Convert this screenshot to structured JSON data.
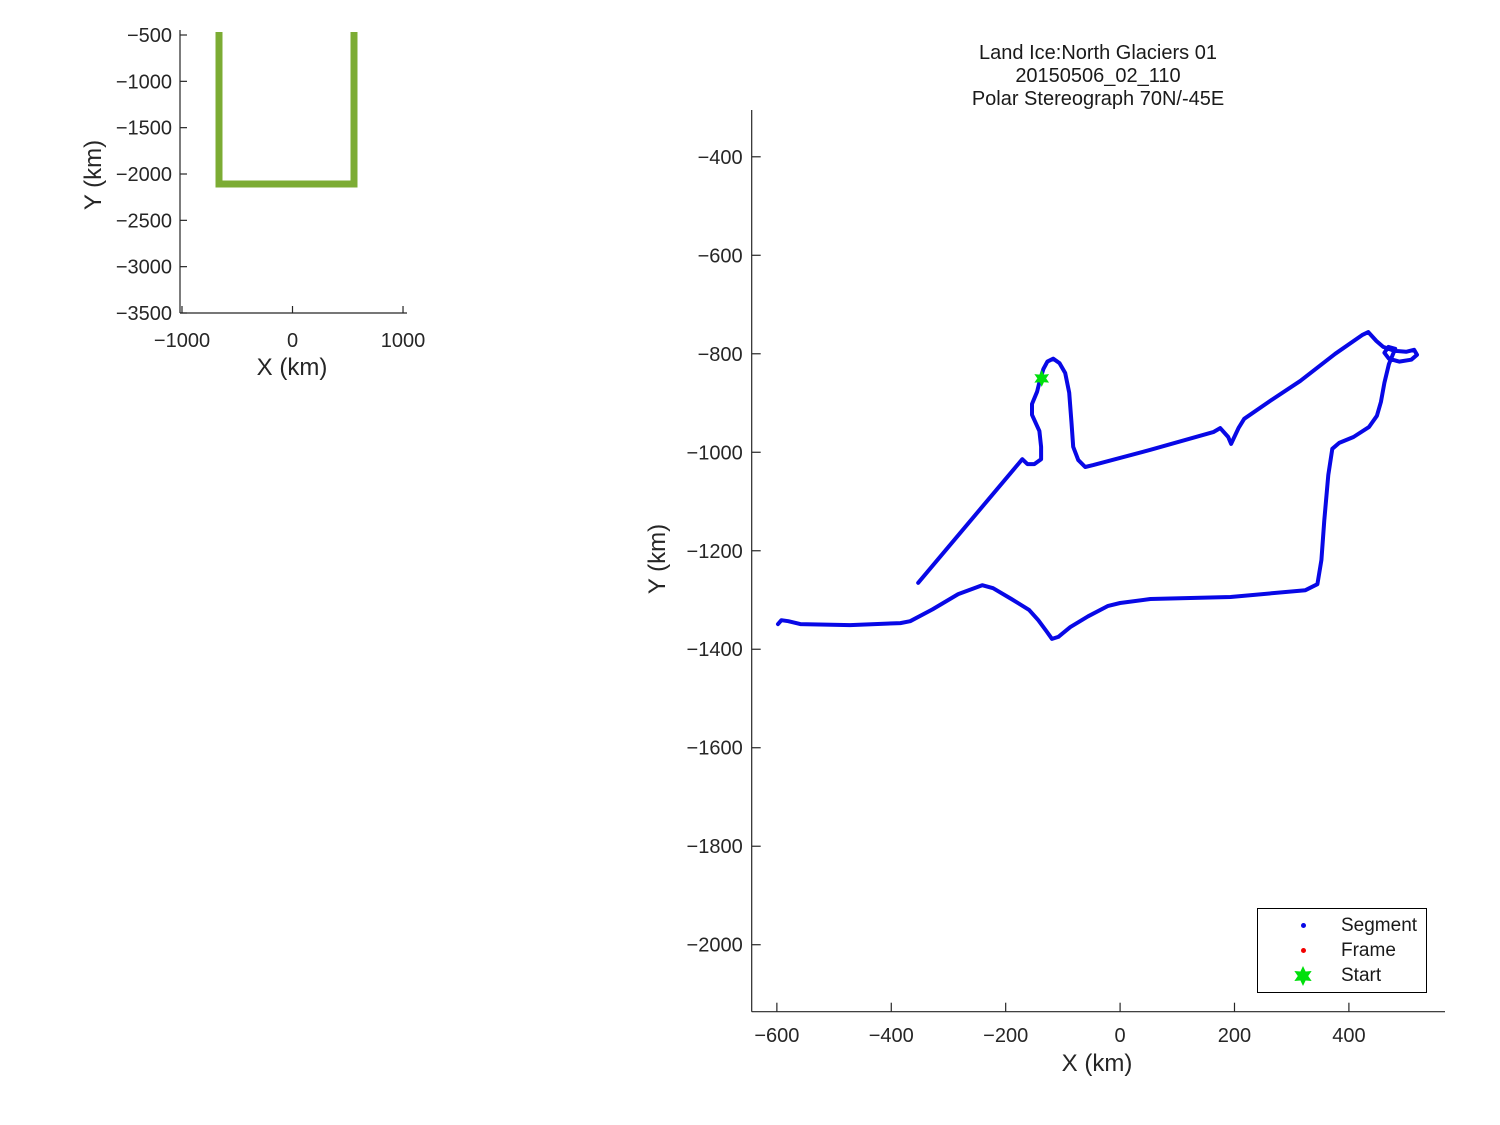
{
  "figure": {
    "background": "#ffffff",
    "text_color": "#262626",
    "axis_color": "#262626"
  },
  "main_title": {
    "line1": "Land Ice:North Glaciers 01",
    "line2": "20150506_02_110",
    "line3": "Polar Stereograph 70N/-45E"
  },
  "legend": {
    "position": "lower right",
    "entries": [
      {
        "label": "Segment",
        "marker": "dot",
        "color": "#0808E6"
      },
      {
        "label": "Frame",
        "marker": "dot",
        "color": "#F20000"
      },
      {
        "label": "Start",
        "marker": "hexagram",
        "color": "#00DF0C"
      }
    ]
  },
  "chart_data": [
    {
      "id": "overview",
      "type": "line",
      "title": "",
      "xlabel": "X (km)",
      "ylabel": "Y (km)",
      "xlim": [
        -1018,
        1036
      ],
      "ylim": [
        -3500,
        -446
      ],
      "xticks": [
        -1000,
        0,
        1000
      ],
      "yticks": [
        -500,
        -1000,
        -1500,
        -2000,
        -2500,
        -3000,
        -3500
      ],
      "grid": false,
      "series": [
        {
          "name": "survey-region-track",
          "color": "#7CAC34",
          "line_width": 7,
          "points": [
            [
              -665,
              -468
            ],
            [
              -665,
              -2108
            ],
            [
              556,
              -2108
            ],
            [
              556,
              -468
            ]
          ]
        }
      ]
    },
    {
      "id": "trajectory",
      "type": "line",
      "title": "Land Ice:North Glaciers 01 / 20150506_02_110 / Polar Stereograph 70N/-45E",
      "xlabel": "X (km)",
      "ylabel": "Y (km)",
      "xlim": [
        -644,
        568
      ],
      "ylim": [
        -2136,
        -305
      ],
      "xticks": [
        -600,
        -400,
        -200,
        0,
        200,
        400
      ],
      "yticks": [
        -400,
        -600,
        -800,
        -1000,
        -1200,
        -1400,
        -1600,
        -1800,
        -2000
      ],
      "grid": false,
      "series": [
        {
          "name": "segment-track",
          "color": "#0808E6",
          "line_width": 4,
          "points": [
            [
              -353,
              -1265
            ],
            [
              -171,
              -1014
            ],
            [
              -162,
              -1024
            ],
            [
              -150,
              -1024
            ],
            [
              -138,
              -1014
            ],
            [
              -138,
              -989
            ],
            [
              -141,
              -957
            ],
            [
              -154,
              -924
            ],
            [
              -154,
              -902
            ],
            [
              -145,
              -877
            ],
            [
              -140,
              -853
            ],
            [
              -134,
              -831
            ],
            [
              -127,
              -816
            ],
            [
              -117,
              -810
            ],
            [
              -106,
              -819
            ],
            [
              -96,
              -839
            ],
            [
              -89,
              -879
            ],
            [
              -85,
              -940
            ],
            [
              -82,
              -989
            ],
            [
              -73,
              -1016
            ],
            [
              -61,
              -1030
            ],
            [
              -47,
              -1026
            ],
            [
              53,
              -995
            ],
            [
              163,
              -959
            ],
            [
              175,
              -951
            ],
            [
              189,
              -969
            ],
            [
              194,
              -983
            ],
            [
              207,
              -951
            ],
            [
              217,
              -932
            ],
            [
              262,
              -896
            ],
            [
              315,
              -855
            ],
            [
              376,
              -800
            ],
            [
              423,
              -762
            ],
            [
              434,
              -756
            ],
            [
              448,
              -774
            ],
            [
              460,
              -786
            ],
            [
              479,
              -794
            ],
            [
              500,
              -796
            ],
            [
              514,
              -792
            ],
            [
              519,
              -802
            ],
            [
              509,
              -812
            ],
            [
              488,
              -816
            ],
            [
              470,
              -810
            ],
            [
              462,
              -798
            ],
            [
              469,
              -786
            ],
            [
              481,
              -790
            ],
            [
              470,
              -821
            ],
            [
              462,
              -859
            ],
            [
              456,
              -898
            ],
            [
              449,
              -926
            ],
            [
              435,
              -949
            ],
            [
              408,
              -969
            ],
            [
              383,
              -981
            ],
            [
              371,
              -993
            ],
            [
              364,
              -1046
            ],
            [
              357,
              -1138
            ],
            [
              352,
              -1219
            ],
            [
              345,
              -1268
            ],
            [
              324,
              -1280
            ],
            [
              193,
              -1294
            ],
            [
              53,
              -1298
            ],
            [
              0,
              -1306
            ],
            [
              -21,
              -1312
            ],
            [
              -56,
              -1333
            ],
            [
              -87,
              -1355
            ],
            [
              -108,
              -1375
            ],
            [
              -119,
              -1379
            ],
            [
              -129,
              -1363
            ],
            [
              -143,
              -1341
            ],
            [
              -159,
              -1320
            ],
            [
              -190,
              -1298
            ],
            [
              -222,
              -1276
            ],
            [
              -241,
              -1270
            ],
            [
              -283,
              -1288
            ],
            [
              -328,
              -1319
            ],
            [
              -367,
              -1343
            ],
            [
              -384,
              -1347
            ],
            [
              -472,
              -1351
            ],
            [
              -559,
              -1349
            ],
            [
              -580,
              -1343
            ],
            [
              -592,
              -1341
            ],
            [
              -598,
              -1349
            ]
          ]
        }
      ],
      "start_marker": {
        "x": -137,
        "y": -850,
        "shape": "hexagram",
        "color": "#00DF0C"
      }
    }
  ]
}
